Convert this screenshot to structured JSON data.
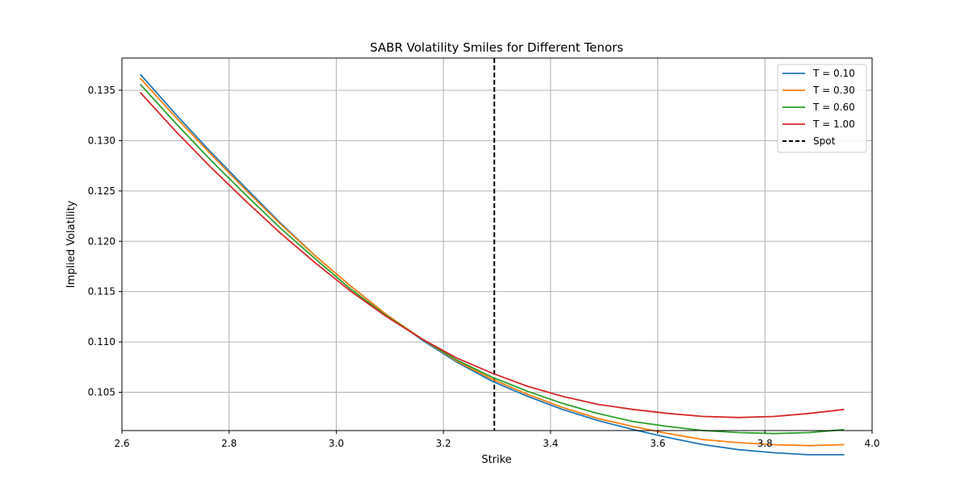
{
  "chart_data": {
    "type": "line",
    "title": "SABR Volatility Smiles for Different Tenors",
    "xlabel": "Strike",
    "ylabel": "Implied Volatility",
    "xlim": [
      2.6,
      4.0
    ],
    "ylim": [
      0.1012,
      0.1382
    ],
    "xticks": [
      2.6,
      2.8,
      3.0,
      3.2,
      3.4,
      3.6,
      3.8,
      4.0
    ],
    "xtick_labels": [
      "2.6",
      "2.8",
      "3.0",
      "3.2",
      "3.4",
      "3.6",
      "3.8",
      "4.0"
    ],
    "yticks": [
      0.105,
      0.11,
      0.115,
      0.12,
      0.125,
      0.13,
      0.135
    ],
    "ytick_labels": [
      "0.105",
      "0.110",
      "0.115",
      "0.120",
      "0.125",
      "0.130",
      "0.135"
    ],
    "grid": true,
    "legend_position": "top-right",
    "x": [
      2.634,
      2.699,
      2.765,
      2.831,
      2.896,
      2.962,
      3.028,
      3.094,
      3.16,
      3.225,
      3.291,
      3.357,
      3.422,
      3.488,
      3.554,
      3.62,
      3.685,
      3.751,
      3.817,
      3.882,
      3.948
    ],
    "series": [
      {
        "name": "T = 0.10",
        "color": "#1f77b4",
        "values": [
          0.1366,
          0.1327,
          0.1289,
          0.1253,
          0.1218,
          0.1185,
          0.1155,
          0.1127,
          0.1102,
          0.108,
          0.1061,
          0.1046,
          0.1033,
          0.1022,
          0.1013,
          0.1005,
          0.0998,
          0.0993,
          0.099,
          0.0988,
          0.0988
        ]
      },
      {
        "name": "T = 0.30",
        "color": "#ff7f0e",
        "values": [
          0.1362,
          0.1324,
          0.1287,
          0.1251,
          0.1217,
          0.1185,
          0.1155,
          0.1127,
          0.1103,
          0.1081,
          0.1063,
          0.1048,
          0.1035,
          0.1024,
          0.1016,
          0.1009,
          0.1003,
          0.1,
          0.0998,
          0.0997,
          0.0998
        ]
      },
      {
        "name": "T = 0.60",
        "color": "#2ca02c",
        "values": [
          0.1356,
          0.1318,
          0.1281,
          0.1246,
          0.1213,
          0.1182,
          0.1152,
          0.1126,
          0.1103,
          0.1082,
          0.1065,
          0.1051,
          0.1039,
          0.1029,
          0.1021,
          0.1016,
          0.1012,
          0.101,
          0.1009,
          0.101,
          0.1013
        ]
      },
      {
        "name": "T = 1.00",
        "color": "#d62728",
        "values": [
          0.1348,
          0.131,
          0.1274,
          0.124,
          0.1208,
          0.1178,
          0.115,
          0.1125,
          0.1103,
          0.1084,
          0.1069,
          0.1056,
          0.1046,
          0.1038,
          0.1033,
          0.1029,
          0.1026,
          0.1025,
          0.1026,
          0.1029,
          0.1033
        ]
      }
    ],
    "spot": {
      "name": "Spot",
      "x": 3.295,
      "color": "#000000"
    }
  }
}
